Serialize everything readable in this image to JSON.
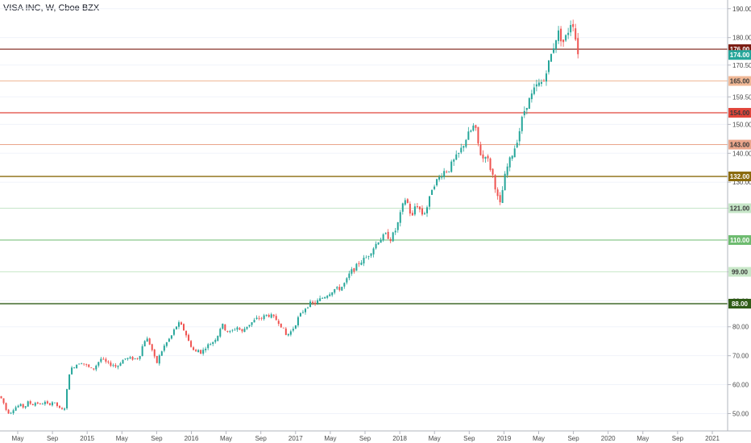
{
  "chart_data": {
    "type": "candlestick",
    "title": "VISA INC, W, Cboe BZX",
    "y_axis": {
      "min": 44,
      "max": 193,
      "ticks": [
        {
          "value": 190,
          "label": "190.00"
        },
        {
          "value": 180,
          "label": "180.00"
        },
        {
          "value": 170.5,
          "label": "170.50"
        },
        {
          "value": 159.5,
          "label": "159.50"
        },
        {
          "value": 150,
          "label": "150.00"
        },
        {
          "value": 140,
          "label": "140.00"
        },
        {
          "value": 130,
          "label": "130.00"
        },
        {
          "value": 121,
          "label": "121.00"
        },
        {
          "value": 99,
          "label": "99.00"
        },
        {
          "value": 89,
          "label": "89.00"
        },
        {
          "value": 80,
          "label": "80.00"
        },
        {
          "value": 70,
          "label": "70.00"
        },
        {
          "value": 60,
          "label": "60.00"
        },
        {
          "value": 50,
          "label": "50.00"
        }
      ]
    },
    "x_axis": {
      "labels": [
        "May",
        "Sep",
        "2015",
        "May",
        "Sep",
        "2016",
        "May",
        "Sep",
        "2017",
        "May",
        "Sep",
        "2018",
        "May",
        "Sep",
        "2019",
        "May",
        "Sep",
        "2020",
        "May",
        "Sep",
        "2021"
      ]
    },
    "horizontal_levels": [
      {
        "value": 176,
        "label": "176.00",
        "color": "#7b1c12",
        "width": 1.2
      },
      {
        "value": 165,
        "label": "165.00",
        "color": "#f0b896",
        "width": 1
      },
      {
        "value": 154,
        "label": "154.00",
        "color": "#e0453a",
        "width": 1.2
      },
      {
        "value": 143,
        "label": "143.00",
        "color": "#eaa58b",
        "width": 1
      },
      {
        "value": 132,
        "label": "132.00",
        "color": "#8a6a0c",
        "width": 1.4
      },
      {
        "value": 121,
        "label": "121.00",
        "color": "#c6e6c8",
        "width": 1
      },
      {
        "value": 110,
        "label": "110.00",
        "color": "#6dbb6f",
        "width": 1
      },
      {
        "value": 99,
        "label": "99.00",
        "color": "#c9e8c9",
        "width": 1
      },
      {
        "value": 88,
        "label": "88.00",
        "color": "#2f5c17",
        "width": 1.4
      }
    ],
    "last_price": {
      "value": 174,
      "label": "174.00",
      "color": "#26a69a"
    },
    "price_path": [
      [
        0,
        56
      ],
      [
        4,
        54
      ],
      [
        8,
        51
      ],
      [
        12,
        50
      ],
      [
        18,
        52
      ],
      [
        25,
        53
      ],
      [
        30,
        52
      ],
      [
        35,
        54
      ],
      [
        40,
        53
      ],
      [
        45,
        54
      ],
      [
        50,
        53
      ],
      [
        55,
        54
      ],
      [
        60,
        53
      ],
      [
        65,
        54
      ],
      [
        70,
        53
      ],
      [
        76,
        51
      ],
      [
        80,
        52
      ],
      [
        83,
        58
      ],
      [
        86,
        64
      ],
      [
        90,
        66
      ],
      [
        95,
        67
      ],
      [
        100,
        68
      ],
      [
        105,
        67
      ],
      [
        110,
        66
      ],
      [
        115,
        65
      ],
      [
        120,
        67
      ],
      [
        125,
        69
      ],
      [
        130,
        68
      ],
      [
        135,
        67
      ],
      [
        140,
        67
      ],
      [
        145,
        66
      ],
      [
        150,
        68
      ],
      [
        155,
        69
      ],
      [
        160,
        69
      ],
      [
        165,
        69
      ],
      [
        170,
        69
      ],
      [
        175,
        71
      ],
      [
        178,
        75
      ],
      [
        182,
        76
      ],
      [
        186,
        74
      ],
      [
        190,
        71
      ],
      [
        194,
        67
      ],
      [
        198,
        70
      ],
      [
        203,
        73
      ],
      [
        208,
        75
      ],
      [
        213,
        77
      ],
      [
        218,
        80
      ],
      [
        222,
        81
      ],
      [
        226,
        80
      ],
      [
        230,
        78
      ],
      [
        234,
        75
      ],
      [
        238,
        73
      ],
      [
        242,
        71
      ],
      [
        246,
        72
      ],
      [
        250,
        71
      ],
      [
        255,
        73
      ],
      [
        260,
        74
      ],
      [
        265,
        75
      ],
      [
        270,
        77
      ],
      [
        275,
        81
      ],
      [
        280,
        79
      ],
      [
        285,
        78
      ],
      [
        290,
        79
      ],
      [
        295,
        80
      ],
      [
        300,
        78
      ],
      [
        305,
        80
      ],
      [
        310,
        81
      ],
      [
        315,
        82
      ],
      [
        320,
        83
      ],
      [
        325,
        83
      ],
      [
        330,
        84
      ],
      [
        335,
        84
      ],
      [
        340,
        83
      ],
      [
        345,
        82
      ],
      [
        350,
        80
      ],
      [
        355,
        77
      ],
      [
        360,
        78
      ],
      [
        365,
        80
      ],
      [
        370,
        83
      ],
      [
        375,
        85
      ],
      [
        380,
        87
      ],
      [
        385,
        88
      ],
      [
        390,
        88
      ],
      [
        395,
        89
      ],
      [
        400,
        90
      ],
      [
        405,
        91
      ],
      [
        410,
        92
      ],
      [
        415,
        93
      ],
      [
        420,
        93
      ],
      [
        425,
        94
      ],
      [
        430,
        96
      ],
      [
        435,
        99
      ],
      [
        440,
        100
      ],
      [
        445,
        102
      ],
      [
        450,
        103
      ],
      [
        455,
        104
      ],
      [
        460,
        106
      ],
      [
        465,
        108
      ],
      [
        470,
        110
      ],
      [
        475,
        111
      ],
      [
        480,
        112
      ],
      [
        484,
        110
      ],
      [
        488,
        112
      ],
      [
        492,
        114
      ],
      [
        496,
        118
      ],
      [
        500,
        122
      ],
      [
        504,
        125
      ],
      [
        508,
        120
      ],
      [
        512,
        118
      ],
      [
        516,
        123
      ],
      [
        520,
        121
      ],
      [
        524,
        119
      ],
      [
        528,
        120
      ],
      [
        532,
        123
      ],
      [
        536,
        128
      ],
      [
        540,
        130
      ],
      [
        544,
        131
      ],
      [
        548,
        133
      ],
      [
        552,
        134
      ],
      [
        556,
        134
      ],
      [
        560,
        136
      ],
      [
        565,
        138
      ],
      [
        570,
        140
      ],
      [
        575,
        143
      ],
      [
        580,
        146
      ],
      [
        585,
        148
      ],
      [
        589,
        150
      ],
      [
        592,
        145
      ],
      [
        595,
        141
      ],
      [
        599,
        138
      ],
      [
        603,
        140
      ],
      [
        607,
        136
      ],
      [
        611,
        133
      ],
      [
        615,
        128
      ],
      [
        618,
        124
      ],
      [
        621,
        122
      ],
      [
        624,
        128
      ],
      [
        628,
        134
      ],
      [
        632,
        137
      ],
      [
        636,
        140
      ],
      [
        640,
        143
      ],
      [
        644,
        147
      ],
      [
        648,
        152
      ],
      [
        652,
        156
      ],
      [
        656,
        158
      ],
      [
        660,
        160
      ],
      [
        665,
        163
      ],
      [
        670,
        164
      ],
      [
        675,
        165
      ],
      [
        678,
        169
      ],
      [
        682,
        172
      ],
      [
        686,
        176
      ],
      [
        690,
        180
      ],
      [
        694,
        182
      ],
      [
        698,
        178
      ],
      [
        702,
        180
      ],
      [
        706,
        183
      ],
      [
        710,
        187
      ],
      [
        714,
        180
      ],
      [
        718,
        174
      ]
    ]
  }
}
